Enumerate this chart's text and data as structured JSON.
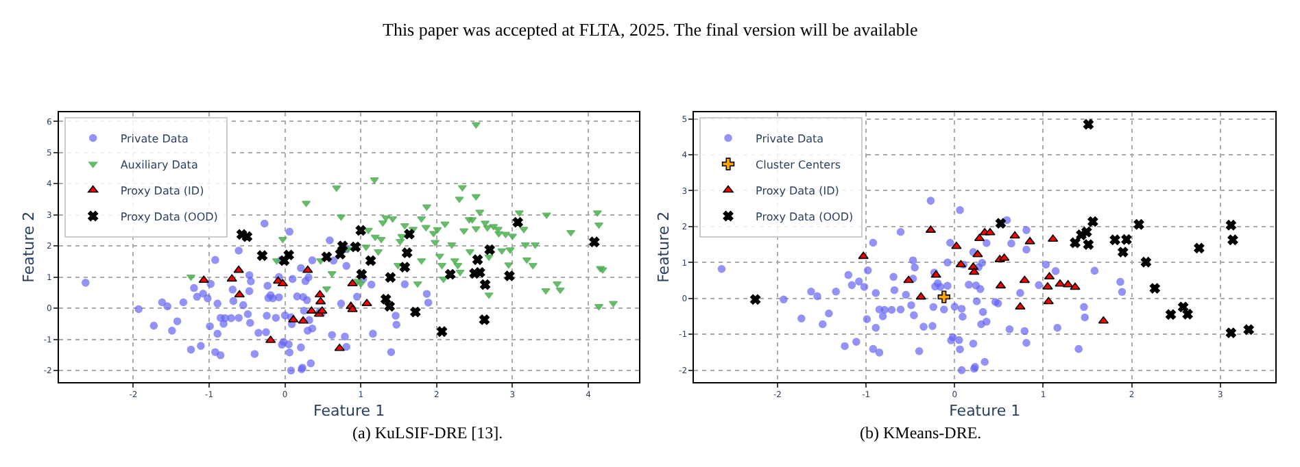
{
  "chart_data": [
    {
      "type": "scatter",
      "annotations": [
        "This paper was accepted at FLTA, 2025. The final version will be available",
        "(a) KuLSIF-DRE [13]."
      ],
      "xlabel": "Feature 1",
      "ylabel": "Feature 2",
      "xlim": [
        -2.98,
        4.67
      ],
      "ylim": [
        -2.37,
        6.3
      ],
      "xticks": [
        -2,
        -1,
        0,
        1,
        2,
        3,
        4
      ],
      "yticks": [
        -2,
        -1,
        0,
        1,
        2,
        3,
        4,
        5,
        6
      ],
      "grid": true,
      "legend": "top left",
      "series": [
        {
          "name": "Private Data",
          "color": "#6464f5",
          "marker": "circle",
          "x": [
            -2.63,
            -1.93,
            -1.73,
            -1.62,
            -1.55,
            -1.49,
            -1.42,
            -1.34,
            -1.24,
            -1.2,
            -1.16,
            -1.11,
            -1.08,
            -1.02,
            -0.99,
            -0.98,
            -0.92,
            -0.92,
            -0.89,
            -0.89,
            -0.85,
            -0.85,
            -0.81,
            -0.79,
            -0.71,
            -0.69,
            -0.68,
            -0.61,
            -0.61,
            -0.55,
            -0.49,
            -0.47,
            -0.46,
            -0.45,
            -0.47,
            -0.4,
            -0.35,
            -0.27,
            -0.25,
            -0.24,
            -0.23,
            -0.22,
            -0.19,
            -0.16,
            -0.12,
            -0.08,
            -0.08,
            -0.05,
            -0.04,
            -0.02,
            0.0,
            0.06,
            0.05,
            0.06,
            0.08,
            0.09,
            0.08,
            0.1,
            0.16,
            0.21,
            0.21,
            0.22,
            0.23,
            0.24,
            0.25,
            0.27,
            0.29,
            0.3,
            0.31,
            0.32,
            0.34,
            0.36,
            0.36,
            0.46,
            0.49,
            0.59,
            0.62,
            0.64,
            0.74,
            0.79,
            0.81,
            0.81,
            0.81,
            0.95,
            1.03,
            1.14,
            1.16,
            1.4,
            1.46,
            1.47,
            1.58,
            1.87,
            1.89
          ],
          "values": [
            0.82,
            -0.03,
            -0.56,
            0.19,
            0.06,
            -0.72,
            -0.42,
            0.19,
            -1.33,
            0.65,
            0.37,
            -1.21,
            0.47,
            0.32,
            -0.58,
            0.78,
            1.55,
            -1.41,
            0.15,
            -0.82,
            -1.51,
            -0.31,
            -0.5,
            -0.32,
            -0.32,
            0.6,
            0.23,
            1.85,
            -0.31,
            0.1,
            -0.19,
            1.06,
            -0.47,
            0.86,
            0.55,
            -1.47,
            -0.79,
            2.72,
            -0.77,
            -0.24,
            0.72,
            0.33,
            0.42,
            0.32,
            -0.31,
            0.35,
            1.0,
            1.55,
            -1.17,
            -1.08,
            -0.23,
            2.46,
            -1.16,
            -1.42,
            -0.29,
            -0.51,
            -2.0,
            0.94,
            0.38,
            -1.26,
            1.29,
            -1.96,
            -1.91,
            0.36,
            -0.08,
            0.87,
            0.26,
            -0.72,
            0.99,
            -0.38,
            -1.77,
            1.54,
            -0.65,
            -0.1,
            -0.14,
            2.18,
            -0.86,
            1.53,
            0.15,
            -0.91,
            -1.24,
            1.9,
            1.36,
            0.37,
            0.94,
            0.76,
            -0.82,
            -1.41,
            -0.24,
            -0.53,
            0.77,
            0.46,
            0.18
          ]
        },
        {
          "name": "Auxiliary Data",
          "color": "#4caf50",
          "marker": "triangle-down",
          "x": [
            -1.24,
            -0.03,
            -0.11,
            0.28,
            0.47,
            0.55,
            0.62,
            0.68,
            0.74,
            0.83,
            0.96,
            1.0,
            1.07,
            1.1,
            1.18,
            1.19,
            1.23,
            1.27,
            1.29,
            1.33,
            1.42,
            1.49,
            1.52,
            1.54,
            1.58,
            1.69,
            1.75,
            1.8,
            1.8,
            1.86,
            1.87,
            1.96,
            1.98,
            2.01,
            2.04,
            2.07,
            2.09,
            2.11,
            2.2,
            2.24,
            2.28,
            2.3,
            2.31,
            2.34,
            2.36,
            2.43,
            2.44,
            2.47,
            2.52,
            2.52,
            2.52,
            2.57,
            2.64,
            2.67,
            2.69,
            2.69,
            2.75,
            2.81,
            2.82,
            2.86,
            2.91,
            2.95,
            2.97,
            3.0,
            3.09,
            3.15,
            3.17,
            3.19,
            3.27,
            3.3,
            3.45,
            3.44,
            3.59,
            3.63,
            3.77,
            4.12,
            4.14,
            4.16,
            4.19,
            4.14,
            4.33
          ],
          "values": [
            1.01,
            2.22,
            1.53,
            3.38,
            1.53,
            0.63,
            1.12,
            3.87,
            2.94,
            1.9,
            0.87,
            0.79,
            1.97,
            2.51,
            4.13,
            2.29,
            1.82,
            2.22,
            2.75,
            2.91,
            2.88,
            1.38,
            2.15,
            2.31,
            2.66,
            2.54,
            0.79,
            2.88,
            1.53,
            2.6,
            3.26,
            2.41,
            2.12,
            2.53,
            1.68,
            1.38,
            0.94,
            2.71,
            2.04,
            1.53,
            1.38,
            3.51,
            1.16,
            3.88,
            2.49,
            2.85,
            1.82,
            2.85,
            5.9,
            3.59,
            2.56,
            3.09,
            2.74,
            2.59,
            1.65,
            0.43,
            2.63,
            2.54,
            2.4,
            1.85,
            2.38,
            1.4,
            1.88,
            2.32,
            3.07,
            2.54,
            2.04,
            1.56,
            1.38,
            2.04,
            3.0,
            0.57,
            0.79,
            0.59,
            2.44,
            3.07,
            2.68,
            1.28,
            1.24,
            0.06,
            0.16
          ]
        },
        {
          "name": "Proxy Data (ID)",
          "color": "#ff0000",
          "marker": "triangle",
          "x": [
            -1.07,
            -0.7,
            -0.61,
            -0.6,
            -0.19,
            -0.09,
            -0.03,
            0.11,
            0.24,
            0.3,
            0.35,
            0.45,
            0.46,
            0.47,
            0.49,
            0.72,
            0.87,
            0.89,
            0.89,
            1.08
          ],
          "values": [
            0.9,
            0.94,
            1.22,
            0.43,
            -1.03,
            0.87,
            0.79,
            -0.37,
            -0.41,
            1.22,
            -0.09,
            -0.19,
            0.43,
            0.21,
            -0.09,
            -1.29,
            0.06,
            -0.04,
            0.79,
            0.15
          ]
        },
        {
          "name": "Proxy Data (OOD)",
          "color": "#000000",
          "marker": "x",
          "x": [
            -0.57,
            -0.5,
            -0.3,
            -0.01,
            0.05,
            0.55,
            0.73,
            0.76,
            0.93,
            1.0,
            1.01,
            1.13,
            1.33,
            1.38,
            1.39,
            1.58,
            1.61,
            1.64,
            1.72,
            2.07,
            2.18,
            2.5,
            2.54,
            2.57,
            2.64,
            2.63,
            2.7,
            2.96,
            3.07,
            4.08
          ],
          "values": [
            2.37,
            2.3,
            1.69,
            1.53,
            1.71,
            1.65,
            1.74,
            2.0,
            1.97,
            2.5,
            1.09,
            1.53,
            0.29,
            0.06,
            0.99,
            1.32,
            1.78,
            2.38,
            -0.12,
            -0.75,
            1.09,
            1.12,
            1.56,
            1.15,
            0.76,
            -0.37,
            1.88,
            1.04,
            2.76,
            2.13
          ]
        }
      ]
    },
    {
      "type": "scatter",
      "annotations": [
        "(b) KMeans-DRE."
      ],
      "xlabel": "Feature 1",
      "ylabel": "Feature 2",
      "xlim": [
        -2.94,
        3.62
      ],
      "ylim": [
        -2.33,
        5.19
      ],
      "xticks": [
        -2,
        -1,
        0,
        1,
        2,
        3
      ],
      "yticks": [
        -2,
        -1,
        0,
        1,
        2,
        3,
        4,
        5
      ],
      "grid": true,
      "legend": "top left",
      "series": [
        {
          "name": "Private Data",
          "color": "#6464f5",
          "marker": "circle",
          "x": [
            -2.63,
            -1.93,
            -1.73,
            -1.62,
            -1.55,
            -1.49,
            -1.42,
            -1.34,
            -1.24,
            -1.2,
            -1.16,
            -1.11,
            -1.08,
            -1.02,
            -0.99,
            -0.98,
            -0.92,
            -0.92,
            -0.89,
            -0.89,
            -0.85,
            -0.85,
            -0.81,
            -0.79,
            -0.71,
            -0.69,
            -0.68,
            -0.61,
            -0.61,
            -0.55,
            -0.49,
            -0.47,
            -0.46,
            -0.45,
            -0.47,
            -0.4,
            -0.35,
            -0.27,
            -0.25,
            -0.24,
            -0.23,
            -0.22,
            -0.19,
            -0.16,
            -0.12,
            -0.08,
            -0.08,
            -0.05,
            -0.04,
            -0.02,
            0.0,
            0.06,
            0.05,
            0.06,
            0.08,
            0.09,
            0.08,
            0.1,
            0.16,
            0.21,
            0.21,
            0.22,
            0.23,
            0.24,
            0.25,
            0.27,
            0.29,
            0.3,
            0.31,
            0.32,
            0.34,
            0.36,
            0.36,
            0.46,
            0.49,
            0.59,
            0.62,
            0.64,
            0.74,
            0.79,
            0.81,
            0.81,
            0.81,
            0.95,
            1.03,
            1.14,
            1.16,
            1.4,
            1.46,
            1.47,
            1.58,
            1.87,
            1.89
          ],
          "values": [
            0.82,
            -0.03,
            -0.56,
            0.19,
            0.06,
            -0.72,
            -0.42,
            0.19,
            -1.33,
            0.65,
            0.37,
            -1.21,
            0.47,
            0.32,
            -0.58,
            0.78,
            1.55,
            -1.41,
            0.15,
            -0.82,
            -1.51,
            -0.31,
            -0.5,
            -0.32,
            -0.32,
            0.6,
            0.23,
            1.85,
            -0.31,
            0.1,
            -0.19,
            1.06,
            -0.47,
            0.86,
            0.55,
            -1.47,
            -0.79,
            2.72,
            -0.77,
            -0.24,
            0.72,
            0.33,
            0.42,
            0.32,
            -0.31,
            0.35,
            1.0,
            1.55,
            -1.17,
            -1.08,
            -0.23,
            2.46,
            -1.16,
            -1.42,
            -0.29,
            -0.51,
            -2.0,
            0.94,
            0.38,
            -1.26,
            1.29,
            -1.96,
            -1.91,
            0.36,
            -0.08,
            0.87,
            0.26,
            -0.72,
            0.99,
            -0.38,
            -1.77,
            1.54,
            -0.65,
            -0.1,
            -0.14,
            2.18,
            -0.86,
            1.53,
            0.15,
            -0.91,
            -1.24,
            1.9,
            1.36,
            0.37,
            0.94,
            0.76,
            -0.82,
            -1.41,
            -0.24,
            -0.53,
            0.77,
            0.46,
            0.18
          ]
        },
        {
          "name": "Cluster Centers",
          "color": "#ffa500",
          "marker": "cross",
          "x": [
            -0.12
          ],
          "values": [
            0.04
          ]
        },
        {
          "name": "Proxy Data (ID)",
          "color": "#ff0000",
          "marker": "triangle",
          "x": [
            -1.03,
            -0.52,
            -0.38,
            -0.27,
            -0.21,
            0.02,
            0.07,
            0.21,
            0.22,
            0.26,
            0.28,
            0.34,
            0.4,
            0.51,
            0.56,
            0.52,
            0.68,
            0.74,
            0.79,
            0.85,
            1.05,
            1.07,
            1.06,
            1.11,
            1.19,
            1.28,
            1.36,
            1.68
          ],
          "values": [
            1.17,
            0.5,
            0.04,
            1.9,
            0.65,
            1.45,
            0.94,
            0.87,
            0.73,
            1.22,
            1.67,
            1.83,
            1.83,
            1.08,
            1.12,
            0.35,
            1.74,
            -0.24,
            0.5,
            1.58,
            0.32,
            0.6,
            -0.09,
            1.65,
            0.4,
            0.38,
            0.31,
            -0.63
          ]
        },
        {
          "name": "Proxy Data (OOD)",
          "color": "#000000",
          "marker": "x",
          "x": [
            -2.25,
            0.52,
            1.36,
            1.43,
            1.49,
            1.51,
            1.51,
            1.56,
            1.81,
            1.94,
            1.9,
            2.08,
            2.16,
            2.26,
            2.44,
            2.58,
            2.63,
            2.76,
            3.12,
            3.14,
            3.12,
            3.32
          ],
          "values": [
            -0.03,
            2.09,
            1.55,
            1.77,
            1.85,
            1.5,
            4.85,
            2.14,
            1.63,
            1.64,
            1.29,
            2.06,
            1.01,
            0.28,
            -0.45,
            -0.24,
            -0.44,
            1.4,
            2.04,
            1.63,
            -0.96,
            -0.87
          ]
        }
      ]
    }
  ]
}
